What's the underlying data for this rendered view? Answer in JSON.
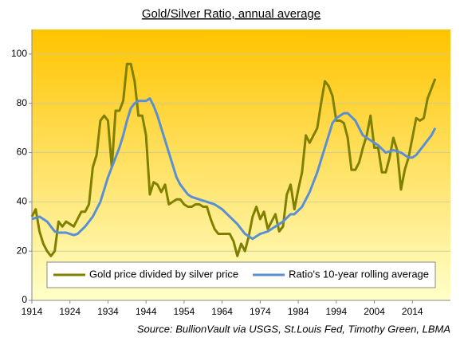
{
  "chart_data": {
    "type": "line",
    "title": "Gold/Silver Ratio, annual average",
    "source": "Source: BullionVault via USGS, St.Louis Fed, Timothy Green, LBMA",
    "x": [
      1914,
      1915,
      1916,
      1917,
      1918,
      1919,
      1920,
      1921,
      1922,
      1923,
      1924,
      1925,
      1926,
      1927,
      1928,
      1929,
      1930,
      1931,
      1932,
      1933,
      1934,
      1935,
      1936,
      1937,
      1938,
      1939,
      1940,
      1941,
      1942,
      1943,
      1944,
      1945,
      1946,
      1947,
      1948,
      1949,
      1950,
      1951,
      1952,
      1953,
      1954,
      1955,
      1956,
      1957,
      1958,
      1959,
      1960,
      1961,
      1962,
      1963,
      1964,
      1965,
      1966,
      1967,
      1968,
      1969,
      1970,
      1971,
      1972,
      1973,
      1974,
      1975,
      1976,
      1977,
      1978,
      1979,
      1980,
      1981,
      1982,
      1983,
      1984,
      1985,
      1986,
      1987,
      1988,
      1989,
      1990,
      1991,
      1992,
      1993,
      1994,
      1995,
      1996,
      1997,
      1998,
      1999,
      2000,
      2001,
      2002,
      2003,
      2004,
      2005,
      2006,
      2007,
      2008,
      2009,
      2010,
      2011,
      2012,
      2013,
      2014,
      2015,
      2016,
      2017,
      2018,
      2019,
      2020
    ],
    "series": [
      {
        "name": "Gold price divided by silver price",
        "color": "#808000",
        "values": [
          34,
          37,
          28,
          23,
          20,
          18,
          20,
          32,
          30,
          32,
          31,
          30,
          33,
          36,
          36,
          39,
          54,
          59,
          73,
          75,
          73,
          54,
          77,
          77,
          81,
          96,
          96,
          89,
          75,
          75,
          67,
          43,
          48,
          47,
          44,
          47,
          39,
          40,
          41,
          41,
          39,
          38,
          38,
          39,
          39,
          38,
          38,
          33,
          29,
          27,
          27,
          27,
          27,
          24,
          18,
          23,
          20,
          26,
          34,
          38,
          33,
          36,
          29,
          32,
          35,
          28,
          30,
          43,
          47,
          37,
          45,
          52,
          67,
          64,
          67,
          70,
          80,
          89,
          87,
          83,
          73,
          73,
          72,
          66,
          53,
          53,
          56,
          62,
          67,
          75,
          62,
          62,
          52,
          52,
          58,
          66,
          61,
          45,
          53,
          58,
          66,
          74,
          73,
          74,
          82,
          86,
          90
        ]
      },
      {
        "name": "Ratio's 10-year rolling average",
        "color": "#5b8fd3",
        "values": [
          33,
          33.5,
          34,
          33,
          32,
          30,
          28,
          27.5,
          27.5,
          27.5,
          27,
          26.5,
          27,
          28.5,
          30,
          32,
          34,
          37,
          40,
          45,
          50,
          54,
          58,
          62,
          67,
          73,
          78,
          80,
          81,
          81,
          81,
          82,
          79,
          75,
          70,
          65,
          60,
          55,
          50,
          47,
          45,
          43,
          42,
          41.5,
          41,
          40.5,
          40,
          39.5,
          39,
          38,
          37,
          35.5,
          34,
          32.5,
          31,
          29,
          27,
          26,
          25,
          26,
          27,
          27.5,
          28,
          29,
          30,
          31,
          32,
          33.5,
          35,
          35,
          36.5,
          38,
          41,
          44,
          48,
          52,
          57,
          62,
          67,
          72,
          74,
          75,
          76,
          76,
          74.5,
          73,
          70,
          67,
          66,
          65,
          64,
          63,
          61.5,
          60,
          60.5,
          61,
          60.5,
          60,
          59,
          58,
          58,
          59,
          61,
          63,
          65,
          67,
          70
        ]
      }
    ],
    "xlim": [
      1914,
      2024
    ],
    "xticks": [
      1914,
      1924,
      1934,
      1944,
      1954,
      1964,
      1974,
      1984,
      1994,
      2004,
      2014
    ],
    "ylim": [
      0,
      110
    ],
    "yticks": [
      0,
      20,
      40,
      60,
      80,
      100
    ],
    "grid": true,
    "legend": "lower center"
  }
}
